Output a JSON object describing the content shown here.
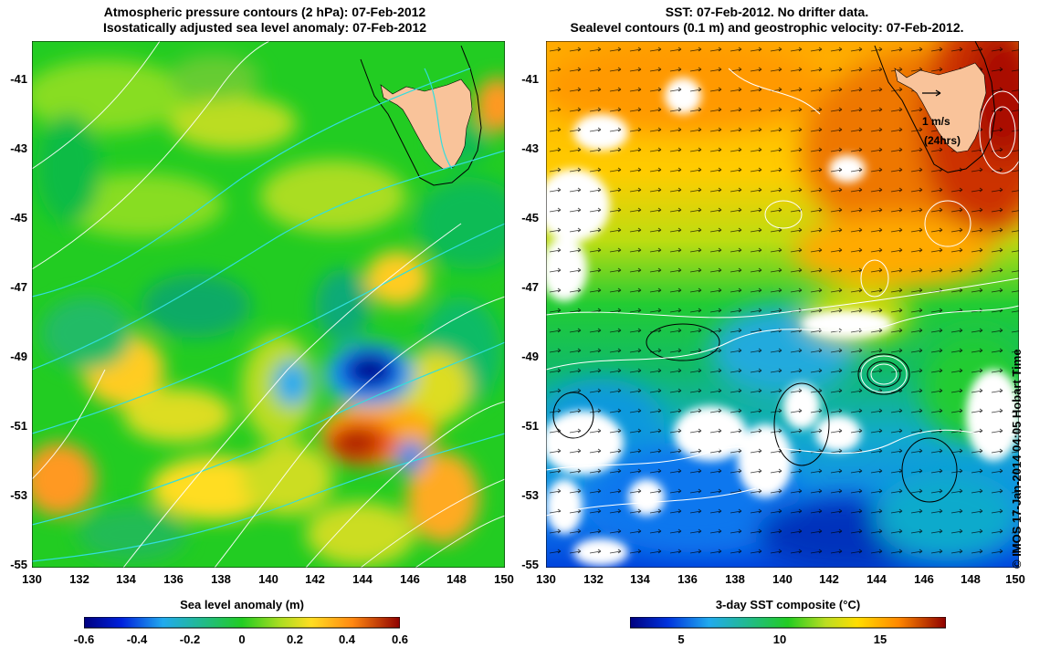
{
  "left_panel": {
    "title_line1": "Atmospheric pressure contours (2 hPa): 07-Feb-2012",
    "title_line2": "Isostatically adjusted sea level anomaly: 07-Feb-2012",
    "x_ticks": [
      "130",
      "132",
      "134",
      "136",
      "138",
      "140",
      "142",
      "144",
      "146",
      "148",
      "150"
    ],
    "y_ticks": [
      "-41",
      "-43",
      "-45",
      "-47",
      "-49",
      "-51",
      "-53",
      "-55"
    ],
    "colorbar_label": "Sea level anomaly (m)",
    "colorbar_ticks": [
      "-0.6",
      "-0.4",
      "-0.2",
      "0",
      "0.2",
      "0.4",
      "0.6"
    ]
  },
  "right_panel": {
    "title_line1": "SST: 07-Feb-2012. No drifter data.",
    "title_line2": "Sealevel contours (0.1 m) and geostrophic velocity: 07-Feb-2012.",
    "x_ticks": [
      "130",
      "132",
      "134",
      "136",
      "138",
      "140",
      "142",
      "144",
      "146",
      "148",
      "150"
    ],
    "y_ticks": [
      "-41",
      "-43",
      "-45",
      "-47",
      "-49",
      "-51",
      "-53",
      "-55"
    ],
    "scale_label_1": "1 m/s",
    "scale_label_2": "(24hrs)",
    "colorbar_label": "3-day SST composite (°C)",
    "colorbar_ticks": [
      "5",
      "10",
      "15"
    ]
  },
  "credit": "© IMOS 17-Jan-2014 04:05 Hobart Time",
  "colors": {
    "land": "#f9c39a",
    "ssl_low": "#00007f",
    "ssl_high": "#8f0000",
    "contour_white": "#ffffff",
    "contour_cyan": "#33dddd"
  }
}
